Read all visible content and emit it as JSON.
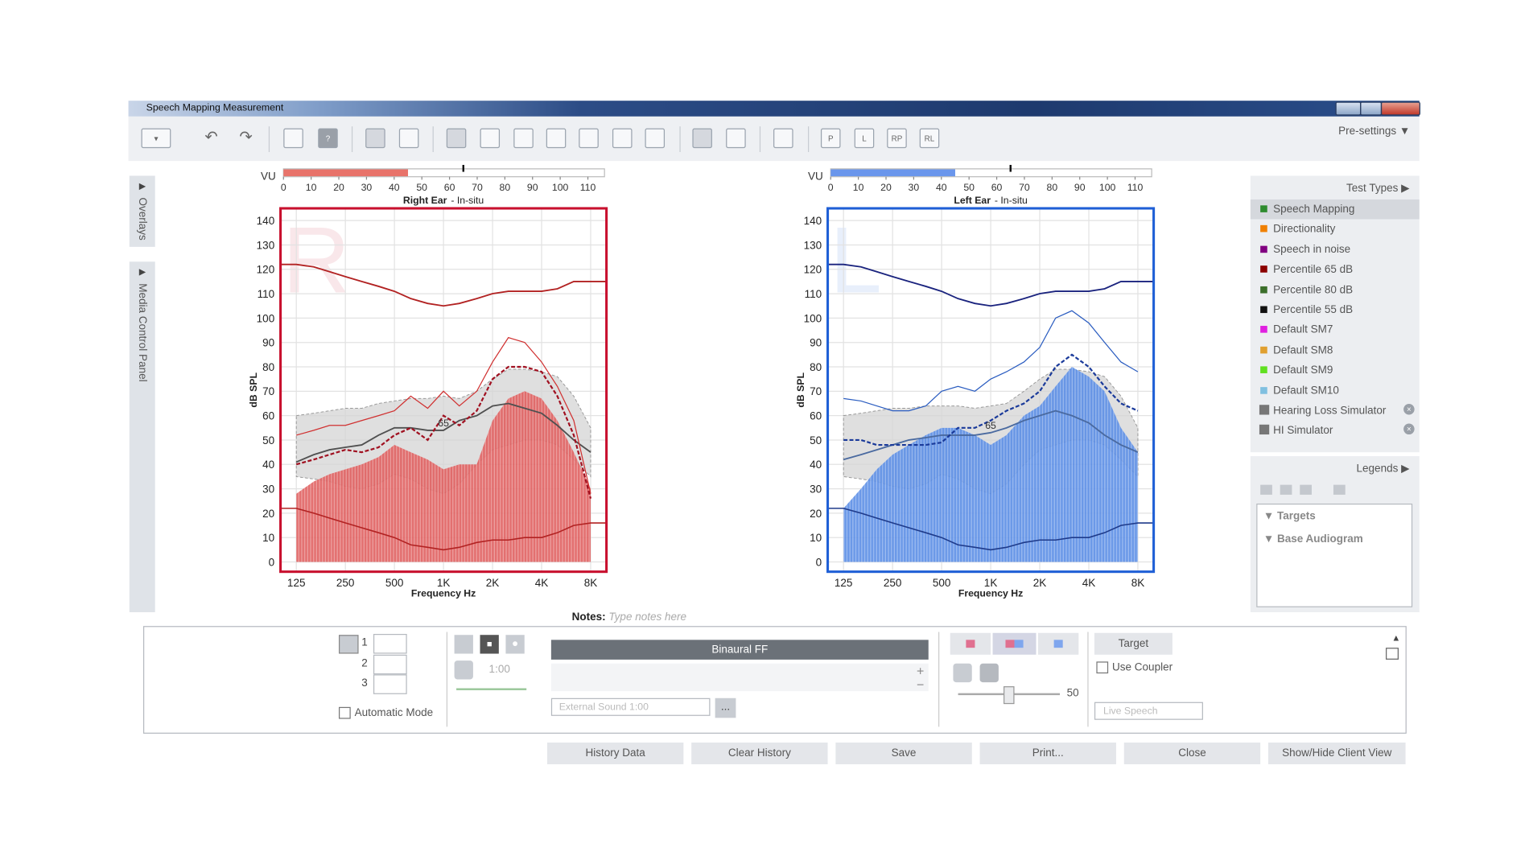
{
  "window": {
    "title": "Speech Mapping Measurement"
  },
  "toolbar": {
    "icon_labels": [
      "P",
      "L",
      "RP",
      "RL"
    ],
    "presettings": "Pre-settings"
  },
  "side_tabs": [
    "Overlays",
    "Media Control Panel"
  ],
  "charts": [
    {
      "ear": "Right Ear",
      "mode": "- In-situ",
      "letter": "R",
      "color": "#c8102e",
      "vu": {
        "label": "VU",
        "xlim": [
          0,
          116
        ],
        "xticks": [
          0,
          10,
          20,
          30,
          40,
          50,
          60,
          70,
          80,
          90,
          100,
          110
        ],
        "level": 45,
        "marker": 65,
        "color": "#e8736a"
      },
      "ylabel": "dB SPL",
      "xlabel": "Frequency Hz",
      "ylim": [
        -4,
        145
      ],
      "yticks": [
        0,
        10,
        20,
        30,
        40,
        50,
        60,
        70,
        80,
        90,
        100,
        110,
        120,
        130,
        140
      ],
      "xlim": [
        100,
        10000
      ],
      "log_x": true,
      "grid": true,
      "xticks": [
        125,
        250,
        500,
        {
          "value": 1000,
          "label": "1K"
        },
        {
          "value": 2000,
          "label": "2K"
        },
        {
          "value": 4000,
          "label": "4K"
        },
        {
          "value": 8000,
          "label": "8K"
        }
      ],
      "speech_level": 65,
      "x": [
        100,
        125,
        160,
        200,
        250,
        315,
        400,
        500,
        630,
        800,
        1000,
        1250,
        1600,
        2000,
        2500,
        3150,
        4000,
        5000,
        6300,
        8000,
        10000
      ],
      "curves": {
        "band_upper": {
          "color": "#d4d4d4",
          "values": [
            null,
            60,
            61,
            62,
            63,
            63,
            65,
            66,
            67,
            67,
            68,
            67,
            70,
            75,
            79,
            79,
            78,
            76,
            68,
            55,
            null
          ]
        },
        "band_lower": {
          "color": "#d4d4d4",
          "values": [
            null,
            35,
            34,
            33,
            31,
            30,
            32,
            36,
            34,
            30,
            28,
            32,
            40,
            46,
            48,
            50,
            50,
            48,
            42,
            35,
            null
          ]
        },
        "speech_fill": {
          "color": "#e06060",
          "values": [
            null,
            28,
            33,
            36,
            38,
            40,
            43,
            48,
            45,
            42,
            38,
            40,
            40,
            58,
            67,
            70,
            67,
            58,
            45,
            30,
            null
          ]
        },
        "ucl": {
          "color": "#b22222",
          "values": [
            122,
            122,
            121,
            119,
            117,
            115,
            113,
            111,
            108,
            106,
            105,
            106,
            108,
            110,
            111,
            111,
            111,
            112,
            115,
            115,
            115
          ]
        },
        "threshold": {
          "color": "#b22222",
          "values": [
            22,
            22,
            20,
            18,
            16,
            14,
            12,
            10,
            7,
            6,
            5,
            6,
            8,
            9,
            9,
            10,
            10,
            12,
            15,
            16,
            16
          ]
        },
        "average": {
          "color": "#505050",
          "values": [
            null,
            41,
            44,
            46,
            47,
            48,
            52,
            55,
            55,
            54,
            54,
            58,
            60,
            64,
            65,
            63,
            61,
            56,
            50,
            45,
            null
          ]
        },
        "dashed": {
          "color": "#a01020",
          "values": [
            null,
            40,
            42,
            44,
            46,
            45,
            47,
            52,
            55,
            50,
            60,
            56,
            62,
            75,
            80,
            80,
            78,
            68,
            52,
            26,
            null
          ]
        },
        "peaks": {
          "color": "#d03030",
          "values": [
            null,
            52,
            54,
            56,
            56,
            58,
            60,
            62,
            68,
            63,
            70,
            64,
            70,
            82,
            92,
            90,
            82,
            72,
            58,
            28,
            null
          ]
        }
      }
    },
    {
      "ear": "Left Ear",
      "mode": "- In-situ",
      "letter": "L",
      "color": "#1f5fd6",
      "vu": {
        "label": "VU",
        "xlim": [
          0,
          116
        ],
        "xticks": [
          0,
          10,
          20,
          30,
          40,
          50,
          60,
          70,
          80,
          90,
          100,
          110
        ],
        "level": 45,
        "marker": 65,
        "color": "#6a96ec"
      },
      "ylabel": "dB SPL",
      "xlabel": "Frequency Hz",
      "ylim": [
        -4,
        145
      ],
      "yticks": [
        0,
        10,
        20,
        30,
        40,
        50,
        60,
        70,
        80,
        90,
        100,
        110,
        120,
        130,
        140
      ],
      "xlim": [
        100,
        10000
      ],
      "log_x": true,
      "grid": true,
      "xticks": [
        125,
        250,
        500,
        {
          "value": 1000,
          "label": "1K"
        },
        {
          "value": 2000,
          "label": "2K"
        },
        {
          "value": 4000,
          "label": "4K"
        },
        {
          "value": 8000,
          "label": "8K"
        }
      ],
      "speech_level": 65,
      "x": [
        100,
        125,
        160,
        200,
        250,
        315,
        400,
        500,
        630,
        800,
        1000,
        1250,
        1600,
        2000,
        2500,
        3150,
        4000,
        5000,
        6300,
        8000,
        10000
      ],
      "curves": {
        "band_upper": {
          "color": "#d4d4d4",
          "values": [
            null,
            60,
            61,
            62,
            63,
            63,
            64,
            64,
            64,
            63,
            64,
            65,
            70,
            75,
            79,
            79,
            78,
            76,
            68,
            55,
            null
          ]
        },
        "band_lower": {
          "color": "#d4d4d4",
          "values": [
            null,
            35,
            34,
            33,
            31,
            30,
            32,
            36,
            34,
            30,
            28,
            32,
            40,
            46,
            48,
            50,
            50,
            48,
            42,
            35,
            null
          ]
        },
        "speech_fill": {
          "color": "#5b8ee6",
          "values": [
            null,
            22,
            30,
            38,
            44,
            48,
            52,
            55,
            55,
            52,
            48,
            52,
            60,
            64,
            72,
            80,
            76,
            70,
            55,
            45,
            null
          ]
        },
        "ucl": {
          "color": "#1a237e",
          "values": [
            122,
            122,
            121,
            119,
            117,
            115,
            113,
            111,
            108,
            106,
            105,
            106,
            108,
            110,
            111,
            111,
            111,
            112,
            115,
            115,
            115
          ]
        },
        "threshold": {
          "color": "#1e3a8a",
          "values": [
            22,
            22,
            20,
            18,
            16,
            14,
            12,
            10,
            7,
            6,
            5,
            6,
            8,
            9,
            9,
            10,
            10,
            12,
            15,
            16,
            16
          ]
        },
        "average": {
          "color": "#4a6aa0",
          "values": [
            null,
            42,
            44,
            46,
            48,
            50,
            51,
            52,
            52,
            52,
            53,
            55,
            58,
            60,
            62,
            60,
            57,
            52,
            48,
            45,
            null
          ]
        },
        "dashed": {
          "color": "#1a3a9a",
          "values": [
            null,
            50,
            50,
            48,
            48,
            48,
            48,
            49,
            55,
            55,
            58,
            62,
            65,
            70,
            80,
            85,
            80,
            72,
            65,
            62,
            null
          ]
        },
        "peaks": {
          "color": "#2a5cc0",
          "values": [
            null,
            67,
            66,
            64,
            62,
            62,
            64,
            70,
            72,
            70,
            75,
            78,
            82,
            88,
            100,
            103,
            98,
            90,
            82,
            78,
            null
          ]
        }
      }
    }
  ],
  "notes": {
    "label": "Notes:",
    "placeholder": "Type notes here"
  },
  "test_types": {
    "title": "Test Types",
    "items": [
      {
        "name": "Speech Mapping",
        "color": "#2e8b2e"
      },
      {
        "name": "Directionality",
        "color": "#f08000"
      },
      {
        "name": "Speech in noise",
        "color": "#800080"
      },
      {
        "name": "Percentile 65 dB",
        "color": "#8b0000"
      },
      {
        "name": "Percentile 80 dB",
        "color": "#3b6e2a"
      },
      {
        "name": "Percentile 55 dB",
        "color": "#111111"
      },
      {
        "name": "Default SM7",
        "color": "#e020e0"
      },
      {
        "name": "Default SM8",
        "color": "#e0a030"
      },
      {
        "name": "Default SM9",
        "color": "#60e020"
      },
      {
        "name": "Default SM10",
        "color": "#80c0e0"
      }
    ],
    "tools": [
      "Hearing Loss Simulator",
      "HI Simulator"
    ]
  },
  "legends": {
    "title": "Legends",
    "items": [
      "Targets",
      "Base Audiogram"
    ]
  },
  "controls": {
    "slots": [
      "1",
      "2",
      "3"
    ],
    "automatic_mode": "Automatic Mode",
    "timer": "1:00",
    "stimulus": "Binaural FF",
    "sound": "External Sound 1:00",
    "more": "...",
    "level": 50,
    "target": "Target",
    "use_coupler": "Use Coupler",
    "live": "Live Speech"
  },
  "buttons": [
    "History Data",
    "Clear History",
    "Save",
    "Print...",
    "Close",
    "Show/Hide Client View"
  ]
}
